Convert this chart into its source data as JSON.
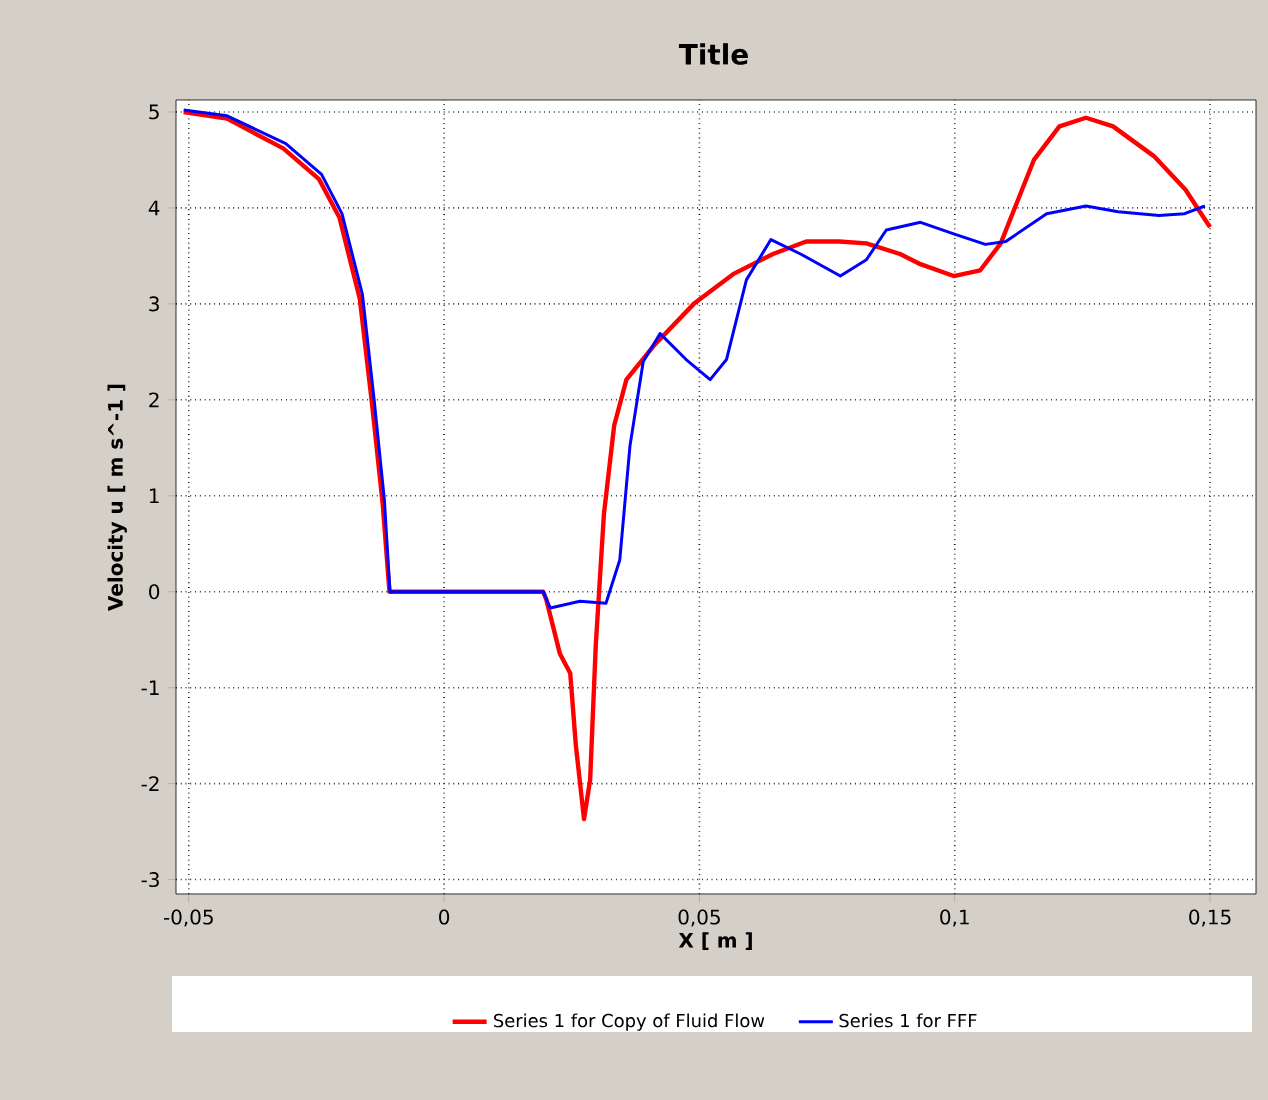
{
  "chart_data": {
    "type": "line",
    "title": "Title",
    "xlabel": "X [ m ]",
    "ylabel": "Velocity u [ m s^-1 ]",
    "xlim": [
      -0.0525,
      0.159
    ],
    "ylim": [
      -3.15,
      5.125
    ],
    "xticks": [
      {
        "value": -0.05,
        "label": "-0,05"
      },
      0,
      {
        "value": 0.05,
        "label": "0,05"
      },
      {
        "value": 0.1,
        "label": "0,1"
      },
      {
        "value": 0.15,
        "label": "0,15"
      }
    ],
    "yticks": [
      -3,
      -2,
      -1,
      0,
      1,
      2,
      3,
      4,
      5
    ],
    "grid": true,
    "legend": "bottom",
    "line_style": "solid",
    "marker": "none",
    "series": [
      {
        "name": "Series 1 for Copy of Fluid Flow",
        "color": "#ff0000",
        "x": [
          -0.051,
          -0.0425,
          -0.0315,
          -0.0245,
          -0.0205,
          -0.0165,
          -0.0141,
          -0.012,
          -0.0107,
          0.0194,
          0.02,
          0.0227,
          0.0247,
          0.0258,
          0.0274,
          0.0286,
          0.0297,
          0.0313,
          0.0333,
          0.0357,
          0.041,
          0.0489,
          0.0566,
          0.0644,
          0.0709,
          0.0774,
          0.0827,
          0.0893,
          0.093,
          0.0998,
          0.105,
          0.109,
          0.1155,
          0.1205,
          0.1257,
          0.131,
          0.139,
          0.1452,
          0.149,
          0.15
        ],
        "values": [
          5.0,
          4.93,
          4.62,
          4.3,
          3.9,
          3.05,
          1.95,
          0.9,
          0,
          0,
          -0.08,
          -0.65,
          -0.85,
          -1.6,
          -2.37,
          -1.96,
          -0.56,
          0.81,
          1.73,
          2.21,
          2.56,
          3.0,
          3.31,
          3.52,
          3.65,
          3.65,
          3.63,
          3.52,
          3.42,
          3.29,
          3.35,
          3.63,
          4.5,
          4.85,
          4.94,
          4.85,
          4.54,
          4.19,
          3.88,
          3.8
        ]
      },
      {
        "name": "Series 1 for FFF",
        "color": "#0000ff",
        "x": [
          -0.051,
          -0.0425,
          -0.031,
          -0.024,
          -0.02,
          -0.016,
          -0.0137,
          -0.0117,
          -0.0106,
          0.0194,
          0.0208,
          0.0266,
          0.0317,
          0.0344,
          0.0364,
          0.039,
          0.0423,
          0.0474,
          0.0521,
          0.0553,
          0.0592,
          0.064,
          0.0698,
          0.0776,
          0.0827,
          0.0866,
          0.0933,
          0.0998,
          0.106,
          0.11,
          0.118,
          0.1257,
          0.132,
          0.14,
          0.145,
          0.149
        ],
        "values": [
          5.02,
          4.96,
          4.67,
          4.35,
          3.94,
          3.1,
          2.0,
          0.96,
          0,
          0,
          -0.17,
          -0.1,
          -0.12,
          0.33,
          1.52,
          2.4,
          2.69,
          2.42,
          2.21,
          2.42,
          3.25,
          3.67,
          3.52,
          3.29,
          3.46,
          3.77,
          3.85,
          3.73,
          3.62,
          3.65,
          3.94,
          4.02,
          3.96,
          3.92,
          3.94,
          4.02
        ]
      }
    ]
  }
}
